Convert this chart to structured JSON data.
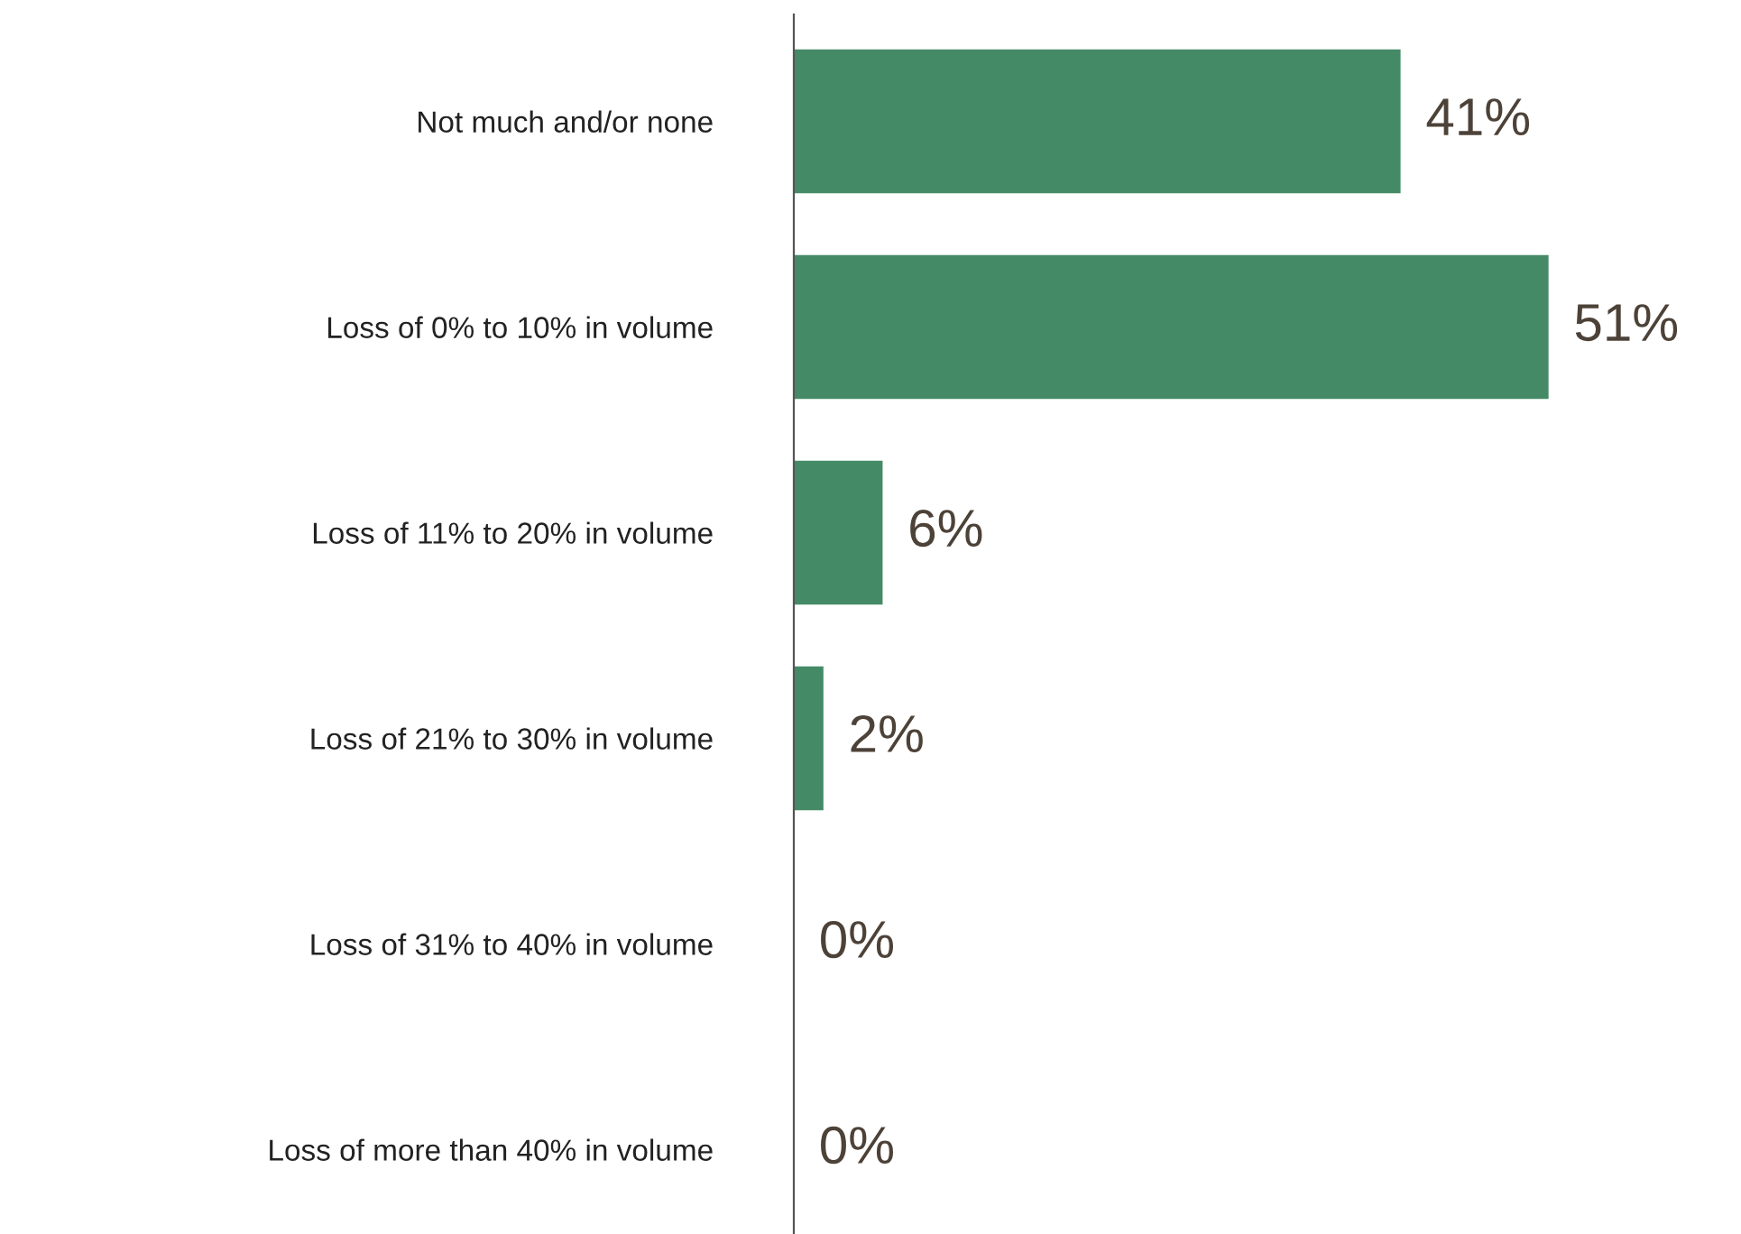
{
  "chart_data": {
    "type": "bar",
    "orientation": "horizontal",
    "categories": [
      "Not much and/or none",
      "Loss of 0% to 10% in volume",
      "Loss of 11% to 20% in volume",
      "Loss of 21% to 30% in volume",
      "Loss of 31% to 40% in volume",
      "Loss of more than 40% in volume"
    ],
    "values": [
      41,
      51,
      6,
      2,
      0,
      0
    ],
    "value_labels": [
      "41%",
      "51%",
      "6%",
      "2%",
      "0%",
      "0%"
    ],
    "color": "#458a66",
    "grid": false,
    "legend": false
  }
}
